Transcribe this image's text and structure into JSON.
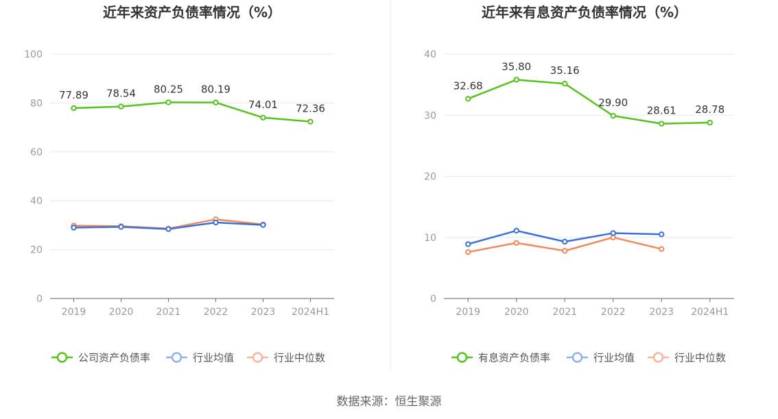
{
  "source": "数据来源：恒生聚源",
  "colors": {
    "company": "#52c41a",
    "avg": "#3a6fd8",
    "median": "#f08a5d",
    "grid": "#e6e8ef",
    "axis": "#666666"
  },
  "chart_data": [
    {
      "type": "line",
      "title": "近年来资产负债率情况（%）",
      "categories": [
        "2019",
        "2020",
        "2021",
        "2022",
        "2023",
        "2024H1"
      ],
      "ylim": [
        0,
        100
      ],
      "yticks": [
        0,
        20,
        40,
        60,
        80,
        100
      ],
      "grid": true,
      "legend_position": "bottom",
      "series": [
        {
          "name": "公司资产负债率",
          "key": "company",
          "values": [
            77.89,
            78.54,
            80.25,
            80.19,
            74.01,
            72.36
          ],
          "labels": [
            "77.89",
            "78.54",
            "80.25",
            "80.19",
            "74.01",
            "72.36"
          ]
        },
        {
          "name": "行业均值",
          "key": "avg",
          "values": [
            29.0,
            29.3,
            28.4,
            31.1,
            30.1,
            null
          ]
        },
        {
          "name": "行业中位数",
          "key": "median",
          "values": [
            29.8,
            29.6,
            28.6,
            32.4,
            30.3,
            null
          ]
        }
      ]
    },
    {
      "type": "line",
      "title": "近年来有息资产负债率情况（%）",
      "categories": [
        "2019",
        "2020",
        "2021",
        "2022",
        "2023",
        "2024H1"
      ],
      "ylim": [
        0,
        40
      ],
      "yticks": [
        0,
        10,
        20,
        30,
        40
      ],
      "grid": true,
      "legend_position": "bottom",
      "series": [
        {
          "name": "有息资产负债率",
          "key": "company",
          "values": [
            32.68,
            35.8,
            35.16,
            29.9,
            28.61,
            28.78
          ],
          "labels": [
            "32.68",
            "35.80",
            "35.16",
            "29.90",
            "28.61",
            "28.78"
          ]
        },
        {
          "name": "行业均值",
          "key": "avg",
          "values": [
            8.9,
            11.1,
            9.3,
            10.7,
            10.5,
            null
          ]
        },
        {
          "name": "行业中位数",
          "key": "median",
          "values": [
            7.6,
            9.1,
            7.8,
            10.0,
            8.1,
            null
          ]
        }
      ]
    }
  ]
}
